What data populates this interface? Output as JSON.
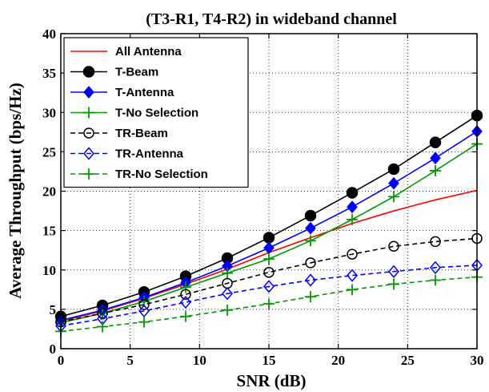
{
  "chart_data": {
    "type": "line",
    "title": "(T3-R1, T4-R2) in wideband channel",
    "xlabel": "SNR (dB)",
    "ylabel": "Average Throughput (bps/Hz)",
    "xlim": [
      0,
      30
    ],
    "ylim": [
      0,
      40
    ],
    "xticks": [
      0,
      5,
      10,
      15,
      20,
      25,
      30
    ],
    "yticks": [
      0,
      5,
      10,
      15,
      20,
      25,
      30,
      35,
      40
    ],
    "grid": true,
    "legend_position": "top-left",
    "x": [
      0,
      3,
      6,
      9,
      12,
      15,
      18,
      21,
      24,
      27,
      30
    ],
    "series": [
      {
        "name": "All Antenna",
        "color": "#ff0000",
        "dash": "solid",
        "marker": "none",
        "values": [
          3.5,
          4.8,
          6.4,
          8.2,
          10.1,
          12.2,
          14.1,
          15.9,
          17.5,
          18.9,
          20.1
        ]
      },
      {
        "name": "T-Beam",
        "color": "#000000",
        "dash": "solid",
        "marker": "filled-circle",
        "values": [
          4.1,
          5.5,
          7.2,
          9.2,
          11.5,
          14.1,
          16.9,
          19.8,
          22.8,
          26.2,
          29.6
        ]
      },
      {
        "name": "T-Antenna",
        "color": "#0000ff",
        "dash": "solid",
        "marker": "filled-diamond",
        "values": [
          3.6,
          4.9,
          6.5,
          8.4,
          10.5,
          12.8,
          15.3,
          18.0,
          21.0,
          24.2,
          27.6
        ]
      },
      {
        "name": "T-No Selection",
        "color": "#009900",
        "dash": "solid",
        "marker": "plus",
        "values": [
          3.3,
          4.5,
          6.0,
          7.8,
          9.6,
          11.4,
          13.7,
          16.4,
          19.3,
          22.6,
          26.0
        ]
      },
      {
        "name": "TR-Beam",
        "color": "#000000",
        "dash": "dashed",
        "marker": "open-circle",
        "values": [
          3.4,
          4.5,
          5.6,
          6.9,
          8.3,
          9.7,
          10.9,
          12.0,
          13.0,
          13.6,
          14.0
        ]
      },
      {
        "name": "TR-Antenna",
        "color": "#0000ff",
        "dash": "dashed",
        "marker": "open-diamond",
        "values": [
          2.9,
          3.8,
          4.8,
          5.9,
          7.0,
          7.9,
          8.7,
          9.3,
          9.8,
          10.3,
          10.6
        ]
      },
      {
        "name": "TR-No Selection",
        "color": "#009900",
        "dash": "dashed",
        "marker": "plus",
        "values": [
          2.2,
          2.8,
          3.4,
          4.1,
          4.9,
          5.7,
          6.6,
          7.5,
          8.2,
          8.7,
          9.1
        ]
      }
    ]
  }
}
